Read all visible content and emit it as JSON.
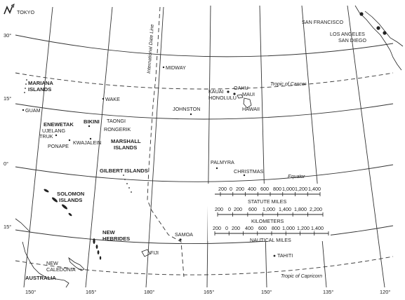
{
  "north_arrow": {
    "symbol": "N",
    "label": "TOKYO"
  },
  "cities": {
    "san_francisco": "SAN FRANCISCO",
    "los_angeles": "LOS ANGELES",
    "san_diego": "SAN DIEGO"
  },
  "lines": {
    "date_line": "International Date Line",
    "tropic_cancer": "Tropic of Cancer",
    "equator": "Equator",
    "tropic_capricorn": "Tropic of Capricorn"
  },
  "lat_labels": [
    "30°",
    "15°",
    "0°",
    "15°"
  ],
  "lon_labels": [
    "150°",
    "165°",
    "180°",
    "165°",
    "150°",
    "135°",
    "120°"
  ],
  "places": {
    "midway": "MIDWAY",
    "wake": "WAKE",
    "guam": "GUAM",
    "mariana": [
      "MARIANA",
      "ISLANDS"
    ],
    "kauai": "KAUAI",
    "oahu": "OAHU",
    "maui": "MAUI",
    "honolulu": "HONOLULU",
    "hawaii": "HAWAII",
    "johnston": "JOHNSTON",
    "bikini": "BIKINI",
    "taongi": "TAONGI",
    "rongerik": "RONGERIK",
    "enewetak": "ENEWETAK",
    "ujelang": "UJELANG",
    "truk": "TRUK",
    "kwajalein": "KWAJALEIN",
    "ponape": "PONAPE",
    "marshall": [
      "MARSHALL",
      "ISLANDS"
    ],
    "gilbert": "GILBERT ISLANDS",
    "palmyra": "PALMYRA",
    "christmas": "CHRISTMAS",
    "solomon": [
      "SOLOMON",
      "ISLANDS"
    ],
    "new_hebrides": [
      "NEW",
      "HEBRIDES"
    ],
    "samoa": "SAMOA",
    "fiji": "FIJI",
    "tahiti": "TAHITI",
    "new_caledonia": [
      "NEW",
      "CALEDONIA"
    ],
    "australia": "AUSTRALIA"
  },
  "scales": {
    "statute": {
      "title": "STATUTE MILES",
      "ticks": [
        "0",
        "200",
        "400",
        "600",
        "800",
        "1,000",
        "1,200",
        "1,400"
      ],
      "top_ticks": [
        "200",
        "0",
        "200",
        "400",
        "600",
        "800",
        "1,000",
        "1,200",
        "1,400"
      ]
    },
    "km": {
      "title": "KILOMETERS",
      "ticks": [
        "200",
        "0",
        "200",
        "600",
        "1,000",
        "1,400",
        "1,800",
        "2,200"
      ]
    },
    "nautical": {
      "title": "NAUTICAL MILES",
      "ticks": [
        "200",
        "0",
        "200",
        "400",
        "600",
        "800",
        "1,000",
        "1,200",
        "1,400"
      ]
    }
  }
}
